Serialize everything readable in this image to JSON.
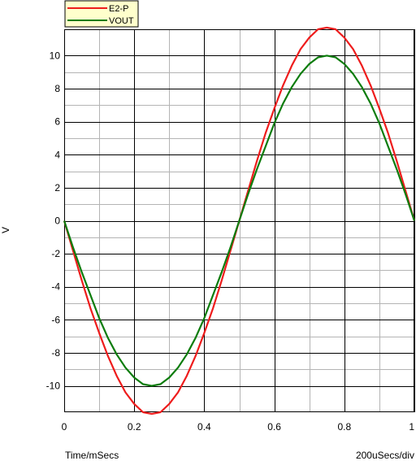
{
  "chart_data": {
    "type": "line",
    "xlabel": "Time/mSecs",
    "x_scale_label": "200uSecs/div",
    "ylabel": "V",
    "xlim": [
      0,
      1
    ],
    "ylim": [
      -11.6,
      11.6
    ],
    "x_ticks": [
      0,
      0.2,
      0.4,
      0.6,
      0.8,
      1
    ],
    "y_ticks": [
      -10,
      -8,
      -6,
      -4,
      -2,
      0,
      2,
      4,
      6,
      8,
      10
    ],
    "grid": true,
    "legend_position": "top-left",
    "series": [
      {
        "name": "E2-P",
        "color": "#ee1c1c",
        "x": [
          0,
          0.025,
          0.05,
          0.075,
          0.1,
          0.125,
          0.15,
          0.175,
          0.2,
          0.225,
          0.25,
          0.275,
          0.3,
          0.325,
          0.35,
          0.375,
          0.4,
          0.425,
          0.45,
          0.475,
          0.5,
          0.525,
          0.55,
          0.575,
          0.6,
          0.625,
          0.65,
          0.675,
          0.7,
          0.725,
          0.75,
          0.775,
          0.8,
          0.825,
          0.85,
          0.875,
          0.9,
          0.925,
          0.95,
          0.975,
          1
        ],
        "y": [
          0,
          -1.8,
          -3.6,
          -5.3,
          -6.8,
          -8.2,
          -9.4,
          -10.4,
          -11.1,
          -11.6,
          -11.7,
          -11.6,
          -11.1,
          -10.4,
          -9.4,
          -8.2,
          -6.8,
          -5.3,
          -3.6,
          -1.8,
          0,
          1.8,
          3.6,
          5.3,
          6.8,
          8.2,
          9.4,
          10.4,
          11.1,
          11.6,
          11.7,
          11.6,
          11.1,
          10.4,
          9.4,
          8.2,
          6.8,
          5.3,
          3.6,
          1.8,
          0
        ]
      },
      {
        "name": "VOUT",
        "color": "#0c7c0c",
        "x": [
          0,
          0.025,
          0.05,
          0.075,
          0.1,
          0.125,
          0.15,
          0.175,
          0.2,
          0.225,
          0.25,
          0.275,
          0.3,
          0.325,
          0.35,
          0.375,
          0.4,
          0.425,
          0.45,
          0.475,
          0.5,
          0.525,
          0.55,
          0.575,
          0.6,
          0.625,
          0.65,
          0.675,
          0.7,
          0.725,
          0.75,
          0.775,
          0.8,
          0.825,
          0.85,
          0.875,
          0.9,
          0.925,
          0.95,
          0.975,
          1
        ],
        "y": [
          0,
          -1.6,
          -3.1,
          -4.5,
          -5.9,
          -7.1,
          -8.1,
          -8.9,
          -9.5,
          -9.9,
          -10,
          -9.9,
          -9.5,
          -8.9,
          -8.1,
          -7.1,
          -5.9,
          -4.5,
          -3.1,
          -1.6,
          0,
          1.6,
          3.1,
          4.5,
          5.9,
          7.1,
          8.1,
          8.9,
          9.5,
          9.9,
          10,
          9.9,
          9.5,
          8.9,
          8.1,
          7.1,
          5.9,
          4.5,
          3.1,
          1.6,
          0
        ]
      }
    ]
  }
}
